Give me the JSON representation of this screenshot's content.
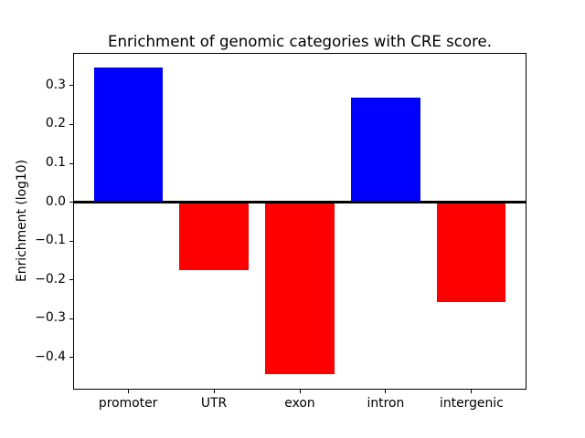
{
  "chart_data": {
    "type": "bar",
    "title": "Enrichment of genomic categories with CRE score.",
    "xlabel": "",
    "ylabel": "Enrichment (log10)",
    "categories": [
      "promoter",
      "UTR",
      "exon",
      "intron",
      "intergenic"
    ],
    "values": [
      0.346,
      -0.176,
      -0.444,
      0.27,
      -0.257
    ],
    "bar_colors": [
      "#0000ff",
      "#ff0000",
      "#ff0000",
      "#0000ff",
      "#ff0000"
    ],
    "positive_color": "#0000ff",
    "negative_color": "#ff0000",
    "yticks": [
      0.3,
      0.2,
      0.1,
      0.0,
      -0.1,
      -0.2,
      -0.3,
      -0.4
    ],
    "ytick_labels": [
      "0.3",
      "0.2",
      "0.1",
      "0.0",
      "−0.1",
      "−0.2",
      "−0.3",
      "−0.4"
    ],
    "ylim": [
      -0.4835,
      0.3855
    ],
    "xlim": [
      -0.64,
      4.64
    ],
    "bar_width": 0.8,
    "grid": false,
    "zero_line_y": 0.0,
    "legend_position": "none",
    "axis_color": "#000000",
    "background_color": "#ffffff"
  }
}
